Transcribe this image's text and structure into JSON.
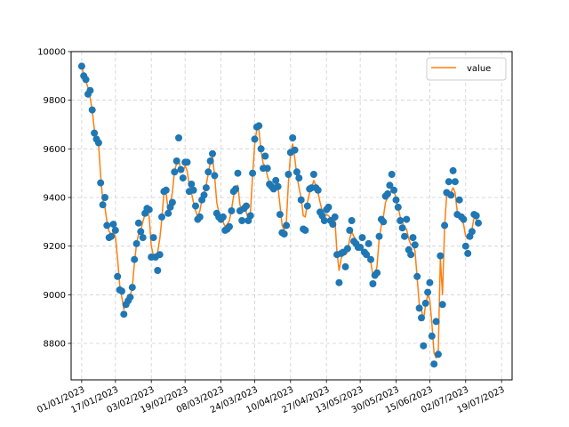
{
  "chart_data": {
    "type": "line",
    "title": "",
    "xlabel": "",
    "ylabel": "",
    "ylim": [
      8650,
      10000
    ],
    "xlim_days": [
      -5,
      204
    ],
    "grid": true,
    "legend_placement": "top-right",
    "x_tick_labels": [
      "01/01/2023",
      "17/01/2023",
      "03/02/2023",
      "19/02/2023",
      "08/03/2023",
      "24/03/2023",
      "10/04/2023",
      "27/04/2023",
      "13/05/2023",
      "30/05/2023",
      "15/06/2023",
      "02/07/2023",
      "19/07/2023"
    ],
    "x_tick_dates": [
      "2023-01-01",
      "2023-01-17",
      "2023-02-03",
      "2023-02-19",
      "2023-03-08",
      "2023-03-24",
      "2023-04-10",
      "2023-04-27",
      "2023-05-13",
      "2023-05-30",
      "2023-06-15",
      "2023-07-02",
      "2023-07-19"
    ],
    "y_ticks": [
      8800,
      9000,
      9200,
      9400,
      9600,
      9800,
      10000
    ],
    "series": [
      {
        "name": "value",
        "marker_color": "#1f77b4",
        "line_color": "#ff7f0e",
        "points": [
          [
            "2023-01-01",
            9940,
            9940
          ],
          [
            "2023-01-02",
            9900,
            9905
          ],
          [
            "2023-01-03",
            9885,
            9880
          ],
          [
            "2023-01-04",
            9825,
            9850
          ],
          [
            "2023-01-05",
            9840,
            9810
          ],
          [
            "2023-01-06",
            9760,
            9760
          ],
          [
            "2023-01-07",
            9665,
            9680
          ],
          [
            "2023-01-08",
            9640,
            9640
          ],
          [
            "2023-01-09",
            9625,
            9620
          ],
          [
            "2023-01-10",
            9460,
            9490
          ],
          [
            "2023-01-11",
            9370,
            9390
          ],
          [
            "2023-01-12",
            9400,
            9360
          ],
          [
            "2023-01-13",
            9285,
            9300
          ],
          [
            "2023-01-14",
            9235,
            9260
          ],
          [
            "2023-01-15",
            9240,
            9250
          ],
          [
            "2023-01-16",
            9290,
            9255
          ],
          [
            "2023-01-17",
            9265,
            9240
          ],
          [
            "2023-01-18",
            9075,
            9150
          ],
          [
            "2023-01-19",
            9020,
            9040
          ],
          [
            "2023-01-20",
            9015,
            8990
          ],
          [
            "2023-01-21",
            8920,
            8940
          ],
          [
            "2023-01-22",
            8960,
            8965
          ],
          [
            "2023-01-23",
            8975,
            8980
          ],
          [
            "2023-01-24",
            8990,
            8995
          ],
          [
            "2023-01-25",
            9030,
            9030
          ],
          [
            "2023-01-26",
            9145,
            9130
          ],
          [
            "2023-01-27",
            9210,
            9210
          ],
          [
            "2023-01-28",
            9295,
            9250
          ],
          [
            "2023-01-29",
            9260,
            9265
          ],
          [
            "2023-01-30",
            9235,
            9300
          ],
          [
            "2023-01-31",
            9335,
            9330
          ],
          [
            "2023-02-01",
            9355,
            9345
          ],
          [
            "2023-02-02",
            9350,
            9320
          ],
          [
            "2023-02-03",
            9155,
            9200
          ],
          [
            "2023-02-04",
            9235,
            9160
          ],
          [
            "2023-02-05",
            9155,
            9165
          ],
          [
            "2023-02-06",
            9100,
            9175
          ],
          [
            "2023-02-07",
            9165,
            9230
          ],
          [
            "2023-02-08",
            9320,
            9310
          ],
          [
            "2023-02-09",
            9425,
            9420
          ],
          [
            "2023-02-10",
            9430,
            9420
          ],
          [
            "2023-02-11",
            9335,
            9345
          ],
          [
            "2023-02-12",
            9360,
            9375
          ],
          [
            "2023-02-13",
            9380,
            9420
          ],
          [
            "2023-02-14",
            9505,
            9510
          ],
          [
            "2023-02-15",
            9550,
            9540
          ],
          [
            "2023-02-16",
            9645,
            9560
          ],
          [
            "2023-02-17",
            9515,
            9510
          ],
          [
            "2023-02-18",
            9480,
            9505
          ],
          [
            "2023-02-19",
            9545,
            9530
          ],
          [
            "2023-02-20",
            9545,
            9510
          ],
          [
            "2023-02-21",
            9425,
            9450
          ],
          [
            "2023-02-22",
            9455,
            9420
          ],
          [
            "2023-02-23",
            9430,
            9380
          ],
          [
            "2023-02-24",
            9365,
            9345
          ],
          [
            "2023-02-25",
            9310,
            9320
          ],
          [
            "2023-02-26",
            9320,
            9345
          ],
          [
            "2023-02-27",
            9390,
            9390
          ],
          [
            "2023-02-28",
            9410,
            9410
          ],
          [
            "2023-03-01",
            9440,
            9450
          ],
          [
            "2023-03-02",
            9505,
            9500
          ],
          [
            "2023-03-03",
            9550,
            9545
          ],
          [
            "2023-03-04",
            9580,
            9570
          ],
          [
            "2023-03-05",
            9490,
            9490
          ],
          [
            "2023-03-06",
            9335,
            9380
          ],
          [
            "2023-03-07",
            9320,
            9340
          ],
          [
            "2023-03-08",
            9310,
            9320
          ],
          [
            "2023-03-09",
            9320,
            9300
          ],
          [
            "2023-03-10",
            9265,
            9280
          ],
          [
            "2023-03-11",
            9270,
            9290
          ],
          [
            "2023-03-12",
            9280,
            9305
          ],
          [
            "2023-03-13",
            9345,
            9350
          ],
          [
            "2023-03-14",
            9425,
            9405
          ],
          [
            "2023-03-15",
            9435,
            9440
          ],
          [
            "2023-03-16",
            9500,
            9450
          ],
          [
            "2023-03-17",
            9345,
            9370
          ],
          [
            "2023-03-18",
            9305,
            9340
          ],
          [
            "2023-03-19",
            9355,
            9360
          ],
          [
            "2023-03-20",
            9365,
            9340
          ],
          [
            "2023-03-21",
            9305,
            9310
          ],
          [
            "2023-03-22",
            9325,
            9340
          ],
          [
            "2023-03-23",
            9500,
            9490
          ],
          [
            "2023-03-24",
            9640,
            9620
          ],
          [
            "2023-03-25",
            9690,
            9680
          ],
          [
            "2023-03-26",
            9695,
            9680
          ],
          [
            "2023-03-27",
            9600,
            9590
          ],
          [
            "2023-03-28",
            9520,
            9540
          ],
          [
            "2023-03-29",
            9570,
            9530
          ],
          [
            "2023-03-30",
            9520,
            9490
          ],
          [
            "2023-03-31",
            9455,
            9460
          ],
          [
            "2023-04-01",
            9445,
            9450
          ],
          [
            "2023-04-02",
            9435,
            9440
          ],
          [
            "2023-04-03",
            9470,
            9455
          ],
          [
            "2023-04-04",
            9445,
            9445
          ],
          [
            "2023-04-05",
            9330,
            9370
          ],
          [
            "2023-04-06",
            9255,
            9285
          ],
          [
            "2023-04-07",
            9250,
            9265
          ],
          [
            "2023-04-08",
            9285,
            9300
          ],
          [
            "2023-04-09",
            9495,
            9460
          ],
          [
            "2023-04-10",
            9585,
            9580
          ],
          [
            "2023-04-11",
            9645,
            9620
          ],
          [
            "2023-04-12",
            9595,
            9560
          ],
          [
            "2023-04-13",
            9505,
            9490
          ],
          [
            "2023-04-14",
            9480,
            9440
          ],
          [
            "2023-04-15",
            9390,
            9400
          ],
          [
            "2023-04-16",
            9270,
            9325
          ],
          [
            "2023-04-17",
            9265,
            9320
          ],
          [
            "2023-04-18",
            9365,
            9380
          ],
          [
            "2023-04-19",
            9435,
            9420
          ],
          [
            "2023-04-20",
            9440,
            9440
          ],
          [
            "2023-04-21",
            9495,
            9470
          ],
          [
            "2023-04-22",
            9440,
            9450
          ],
          [
            "2023-04-23",
            9430,
            9420
          ],
          [
            "2023-04-24",
            9340,
            9380
          ],
          [
            "2023-04-25",
            9325,
            9345
          ],
          [
            "2023-04-26",
            9305,
            9320
          ],
          [
            "2023-04-27",
            9350,
            9330
          ],
          [
            "2023-04-28",
            9360,
            9325
          ],
          [
            "2023-04-29",
            9305,
            9315
          ],
          [
            "2023-04-30",
            9290,
            9290
          ],
          [
            "2023-05-01",
            9320,
            9310
          ],
          [
            "2023-05-02",
            9165,
            9175
          ],
          [
            "2023-05-03",
            9050,
            9100
          ],
          [
            "2023-05-04",
            9170,
            9150
          ],
          [
            "2023-05-05",
            9175,
            9170
          ],
          [
            "2023-05-06",
            9115,
            9165
          ],
          [
            "2023-05-07",
            9190,
            9175
          ],
          [
            "2023-05-08",
            9265,
            9230
          ],
          [
            "2023-05-09",
            9305,
            9260
          ],
          [
            "2023-05-10",
            9220,
            9240
          ],
          [
            "2023-05-11",
            9210,
            9225
          ],
          [
            "2023-05-12",
            9195,
            9205
          ],
          [
            "2023-05-13",
            9195,
            9185
          ],
          [
            "2023-05-14",
            9235,
            9185
          ],
          [
            "2023-05-15",
            9175,
            9175
          ],
          [
            "2023-05-16",
            9165,
            9170
          ],
          [
            "2023-05-17",
            9210,
            9160
          ],
          [
            "2023-05-18",
            9145,
            9135
          ],
          [
            "2023-05-19",
            9045,
            9080
          ],
          [
            "2023-05-20",
            9080,
            9070
          ],
          [
            "2023-05-21",
            9090,
            9120
          ],
          [
            "2023-05-22",
            9240,
            9230
          ],
          [
            "2023-05-23",
            9310,
            9285
          ],
          [
            "2023-05-24",
            9300,
            9320
          ],
          [
            "2023-05-25",
            9405,
            9380
          ],
          [
            "2023-05-26",
            9415,
            9400
          ],
          [
            "2023-05-27",
            9450,
            9420
          ],
          [
            "2023-05-28",
            9495,
            9430
          ],
          [
            "2023-05-29",
            9430,
            9425
          ],
          [
            "2023-05-30",
            9390,
            9400
          ],
          [
            "2023-05-31",
            9360,
            9360
          ],
          [
            "2023-06-01",
            9305,
            9320
          ],
          [
            "2023-06-02",
            9275,
            9300
          ],
          [
            "2023-06-03",
            9240,
            9270
          ],
          [
            "2023-06-04",
            9310,
            9270
          ],
          [
            "2023-06-05",
            9185,
            9230
          ],
          [
            "2023-06-06",
            9165,
            9205
          ],
          [
            "2023-06-07",
            9235,
            9210
          ],
          [
            "2023-06-08",
            9205,
            9180
          ],
          [
            "2023-06-09",
            9075,
            9070
          ],
          [
            "2023-06-10",
            8945,
            8960
          ],
          [
            "2023-06-11",
            8905,
            8940
          ],
          [
            "2023-06-12",
            8790,
            8895
          ],
          [
            "2023-06-13",
            8965,
            8960
          ],
          [
            "2023-06-14",
            9010,
            9000
          ],
          [
            "2023-06-15",
            9050,
            8980
          ],
          [
            "2023-06-16",
            8830,
            8880
          ],
          [
            "2023-06-17",
            8715,
            8760
          ],
          [
            "2023-06-18",
            8890,
            8740
          ],
          [
            "2023-06-19",
            8755,
            8760
          ],
          [
            "2023-06-20",
            9160,
            9150
          ],
          [
            "2023-06-21",
            8960,
            9000
          ],
          [
            "2023-06-22",
            9285,
            9280
          ],
          [
            "2023-06-23",
            9420,
            9410
          ],
          [
            "2023-06-24",
            9465,
            9425
          ],
          [
            "2023-06-25",
            9410,
            9420
          ],
          [
            "2023-06-26",
            9510,
            9440
          ],
          [
            "2023-06-27",
            9465,
            9420
          ],
          [
            "2023-06-28",
            9330,
            9340
          ],
          [
            "2023-06-29",
            9390,
            9330
          ],
          [
            "2023-06-30",
            9320,
            9315
          ],
          [
            "2023-07-01",
            9310,
            9290
          ],
          [
            "2023-07-02",
            9200,
            9240
          ],
          [
            "2023-07-03",
            9170,
            9230
          ],
          [
            "2023-07-04",
            9240,
            9250
          ],
          [
            "2023-07-05",
            9260,
            9270
          ],
          [
            "2023-07-06",
            9330,
            9320
          ],
          [
            "2023-07-07",
            9325,
            9310
          ],
          [
            "2023-07-08",
            9295,
            9290
          ]
        ]
      }
    ]
  },
  "legend": {
    "label": "value"
  }
}
